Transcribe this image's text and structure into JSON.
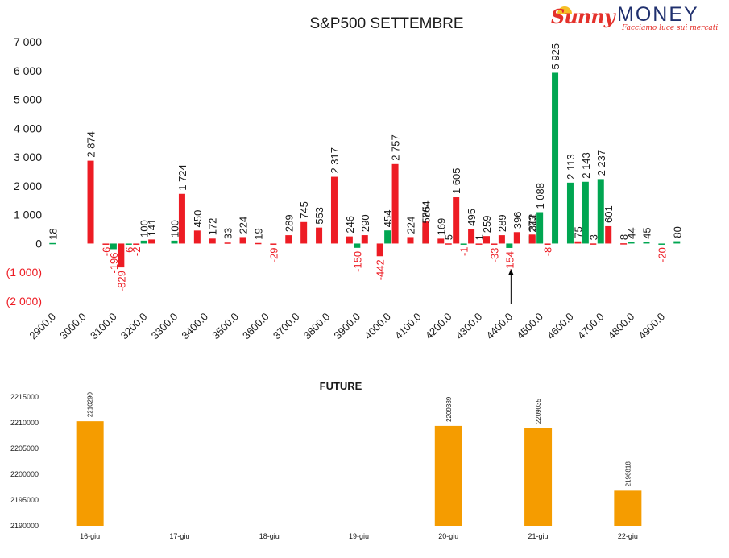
{
  "logo": {
    "brand_left": "Sunny",
    "brand_right": "MONEY",
    "tagline": "Facciamo luce sui mercati"
  },
  "colors": {
    "call": "#ed1c24",
    "put": "#00a651",
    "negative_label": "#ed1c24",
    "future_bar": "#f59c00",
    "text": "#1a1a1a"
  },
  "chart_data": [
    {
      "type": "bar",
      "title": "S&P500 SETTEMBRE",
      "xlabel": "",
      "ylabel": "",
      "ylim": [
        -2000,
        7000
      ],
      "y_ticks": [
        7000,
        6000,
        5000,
        4000,
        3000,
        2000,
        1000,
        0,
        -1000,
        -2000
      ],
      "y_tick_labels": [
        "7 000",
        "6 000",
        "5 000",
        "4 000",
        "3 000",
        "2 000",
        "1 000",
        "0",
        "(1 000)",
        "(2 000)"
      ],
      "x_tick_labels": [
        "2900.0",
        "3000.0",
        "3100.0",
        "3200.0",
        "3300.0",
        "3400.0",
        "3500.0",
        "3600.0",
        "3700.0",
        "3800.0",
        "3900.0",
        "4000.0",
        "4100.0",
        "4200.0",
        "4300.0",
        "4400.0",
        "4500.0",
        "4600.0",
        "4700.0",
        "4800.0",
        "4900.0"
      ],
      "x_range": [
        2900,
        4950
      ],
      "grid": false,
      "legend": "none",
      "arrow_strike": 4400,
      "series": [
        {
          "key": "green",
          "points": [
            {
              "x": 2900,
              "value": 18,
              "label": "18"
            },
            {
              "x": 3100,
              "value": -196,
              "label": "-196"
            },
            {
              "x": 3150,
              "value": -6,
              "label": "-6"
            },
            {
              "x": 3200,
              "value": 100,
              "label": "100"
            },
            {
              "x": 3300,
              "value": 100,
              "label": "100"
            },
            {
              "x": 3900,
              "value": -150,
              "label": "-150"
            },
            {
              "x": 4000,
              "value": 454,
              "label": "454"
            },
            {
              "x": 4125,
              "value": 585,
              "label": "585"
            },
            {
              "x": 4250,
              "value": -1,
              "label": "-1"
            },
            {
              "x": 4400,
              "value": -154,
              "label": "-154"
            },
            {
              "x": 4475,
              "value": 273,
              "label": "273"
            },
            {
              "x": 4500,
              "value": 1088,
              "label": "1 088"
            },
            {
              "x": 4550,
              "value": 5925,
              "label": "5 925"
            },
            {
              "x": 4600,
              "value": 2113,
              "label": "2 113"
            },
            {
              "x": 4650,
              "value": 2143,
              "label": "2 143"
            },
            {
              "x": 4700,
              "value": 2237,
              "label": "2 237"
            },
            {
              "x": 4800,
              "value": 44,
              "label": "44"
            },
            {
              "x": 4850,
              "value": 45,
              "label": "45"
            },
            {
              "x": 4900,
              "value": -20,
              "label": "-20"
            },
            {
              "x": 4950,
              "value": 80,
              "label": "80"
            }
          ]
        },
        {
          "key": "red",
          "points": [
            {
              "x": 3000,
              "value": 2874,
              "label": "2 874"
            },
            {
              "x": 3050,
              "value": -6,
              "label": "-6"
            },
            {
              "x": 3100,
              "value": -829,
              "label": "-829"
            },
            {
              "x": 3150,
              "value": -2,
              "label": "-2"
            },
            {
              "x": 3200,
              "value": 141,
              "label": "141"
            },
            {
              "x": 3300,
              "value": 1724,
              "label": "1 724"
            },
            {
              "x": 3350,
              "value": 450,
              "label": "450"
            },
            {
              "x": 3400,
              "value": 172,
              "label": "172"
            },
            {
              "x": 3450,
              "value": 33,
              "label": "33"
            },
            {
              "x": 3500,
              "value": 224,
              "label": "224"
            },
            {
              "x": 3550,
              "value": 19,
              "label": "19"
            },
            {
              "x": 3600,
              "value": -29,
              "label": "-29"
            },
            {
              "x": 3650,
              "value": 289,
              "label": "289"
            },
            {
              "x": 3700,
              "value": 745,
              "label": "745"
            },
            {
              "x": 3750,
              "value": 553,
              "label": "553"
            },
            {
              "x": 3800,
              "value": 2317,
              "label": "2 317"
            },
            {
              "x": 3850,
              "value": 246,
              "label": "246"
            },
            {
              "x": 3900,
              "value": 290,
              "label": "290"
            },
            {
              "x": 3950,
              "value": -442,
              "label": "-442"
            },
            {
              "x": 4000,
              "value": 2757,
              "label": "2 757"
            },
            {
              "x": 4050,
              "value": 224,
              "label": "224"
            },
            {
              "x": 4100,
              "value": 764,
              "label": "764"
            },
            {
              "x": 4150,
              "value": 169,
              "label": "169"
            },
            {
              "x": 4175,
              "value": 5,
              "label": "5"
            },
            {
              "x": 4200,
              "value": 1605,
              "label": "1 605"
            },
            {
              "x": 4250,
              "value": 495,
              "label": "495"
            },
            {
              "x": 4275,
              "value": 1,
              "label": "1"
            },
            {
              "x": 4300,
              "value": 259,
              "label": "259"
            },
            {
              "x": 4325,
              "value": -33,
              "label": "-33"
            },
            {
              "x": 4350,
              "value": 289,
              "label": "289"
            },
            {
              "x": 4400,
              "value": 396,
              "label": "396"
            },
            {
              "x": 4450,
              "value": 312,
              "label": "312"
            },
            {
              "x": 4500,
              "value": -8,
              "label": "-8"
            },
            {
              "x": 4600,
              "value": 75,
              "label": "75"
            },
            {
              "x": 4650,
              "value": 3,
              "label": "3"
            },
            {
              "x": 4700,
              "value": 601,
              "label": "601"
            },
            {
              "x": 4750,
              "value": 8,
              "label": "8"
            }
          ]
        }
      ]
    },
    {
      "type": "bar",
      "title": "FUTURE",
      "xlabel": "",
      "ylabel": "",
      "ylim": [
        2190000,
        2215000
      ],
      "y_ticks": [
        2215000,
        2210000,
        2205000,
        2200000,
        2195000,
        2190000
      ],
      "categories": [
        "16-giu",
        "17-giu",
        "18-giu",
        "19-giu",
        "20-giu",
        "21-giu",
        "22-giu"
      ],
      "values": [
        2210290,
        null,
        null,
        null,
        2209389,
        2209035,
        2196818
      ],
      "value_labels": [
        "2210290",
        "",
        "",
        "",
        "2209389",
        "2209035",
        "2196818"
      ],
      "grid": false,
      "legend": "none"
    }
  ]
}
